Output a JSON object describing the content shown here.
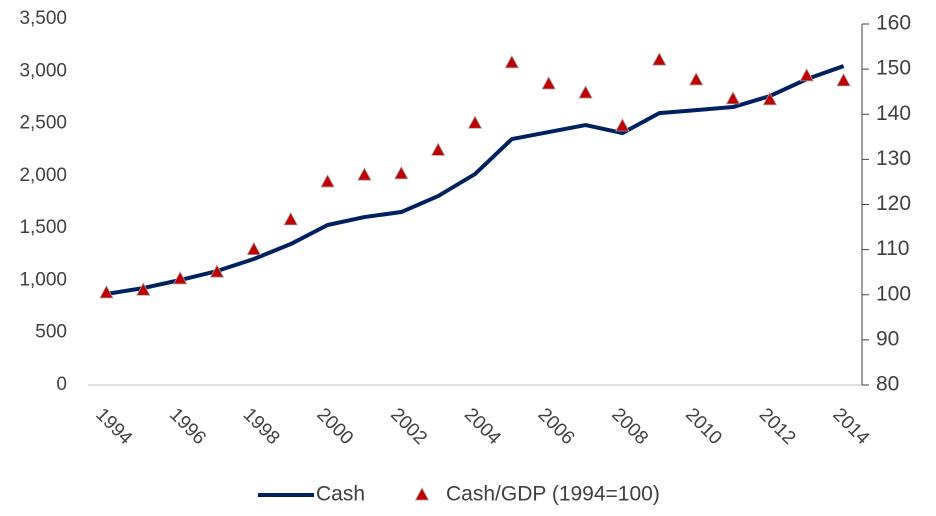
{
  "chart_data": {
    "type": "line",
    "x": [
      1994,
      1995,
      1996,
      1997,
      1998,
      1999,
      2000,
      2001,
      2002,
      2003,
      2004,
      2005,
      2006,
      2007,
      2008,
      2009,
      2010,
      2011,
      2012,
      2013,
      2014
    ],
    "xlim": [
      1993.5,
      2014.5
    ],
    "xticks": [
      1994,
      1996,
      1998,
      2000,
      2002,
      2004,
      2006,
      2008,
      2010,
      2012,
      2014
    ],
    "ylim": [
      0,
      3500
    ],
    "yticks": [
      0,
      500,
      {
        "value": 1000,
        "label": "1,000"
      },
      {
        "value": 1500,
        "label": "1,500"
      },
      {
        "value": 2000,
        "label": "2,000"
      },
      {
        "value": 2500,
        "label": "2,500"
      },
      {
        "value": 3000,
        "label": "3,000"
      },
      {
        "value": 3500,
        "label": "3,500"
      }
    ],
    "y2lim": [
      80,
      160
    ],
    "y2ticks": [
      80,
      90,
      100,
      110,
      120,
      130,
      140,
      150,
      160
    ],
    "series": [
      {
        "name": "Cash",
        "color": "#002060",
        "values": [
          870,
          927,
          1004,
          1090,
          1205,
          1348,
          1530,
          1606,
          1654,
          1807,
          2017,
          2352,
          2419,
          2486,
          2409,
          2600,
          2629,
          2658,
          2763,
          2925,
          3050
        ]
      },
      {
        "name": "Cash/GDP (1994=100)",
        "color": "#c00000",
        "axis": "y2",
        "marker": "triangle",
        "values": [
          100.4,
          101,
          103.5,
          105,
          110,
          116.6,
          125,
          126.5,
          126.8,
          132,
          138,
          151.4,
          146.7,
          144.7,
          137.4,
          152,
          147.6,
          143.4,
          143.2,
          148.5,
          147.4
        ]
      }
    ]
  }
}
